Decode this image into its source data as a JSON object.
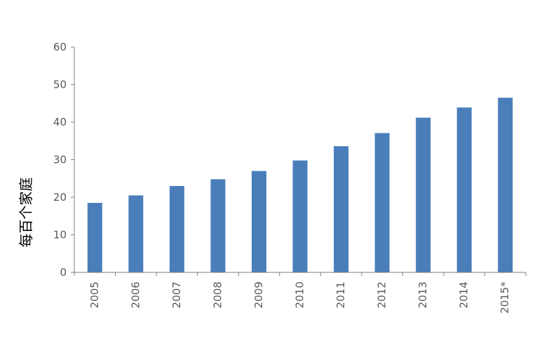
{
  "chart_data": {
    "type": "bar",
    "title": "",
    "xlabel": "",
    "ylabel": "每百个家庭",
    "categories": [
      "2005",
      "2006",
      "2007",
      "2008",
      "2009",
      "2010",
      "2011",
      "2012",
      "2013",
      "2014",
      "2015*"
    ],
    "values": [
      18.5,
      20.5,
      23,
      24.8,
      27,
      29.8,
      33.6,
      37.1,
      41.2,
      43.9,
      46.5
    ],
    "ylim": [
      0,
      60
    ],
    "yticks": [
      0,
      10,
      20,
      30,
      40,
      50,
      60
    ],
    "grid": false,
    "legend": "none",
    "colors": {
      "bar": "#4a7ebb",
      "axis": "#7f7f7f",
      "tick_text": "#595959",
      "label_text": "#000000"
    }
  }
}
